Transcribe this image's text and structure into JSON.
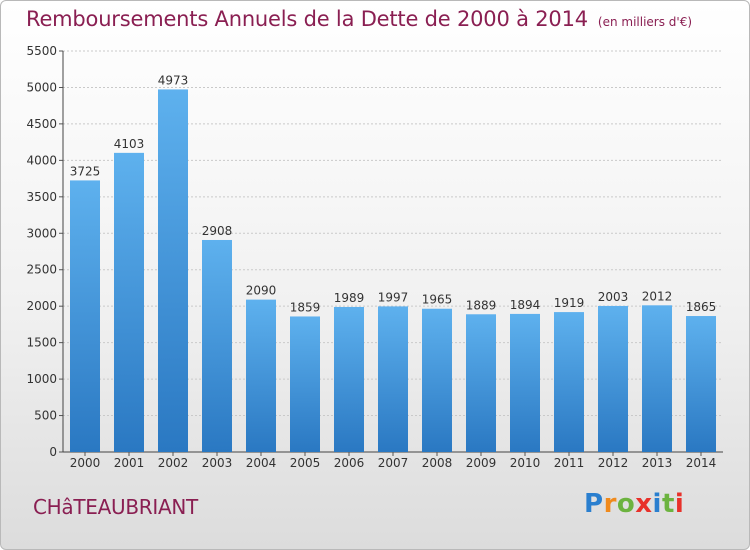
{
  "chart_data": {
    "type": "bar",
    "title": "Remboursements Annuels de la Dette de 2000 à 2014",
    "unit_note": "(en milliers d'€)",
    "categories": [
      "2000",
      "2001",
      "2002",
      "2003",
      "2004",
      "2005",
      "2006",
      "2007",
      "2008",
      "2009",
      "2010",
      "2011",
      "2012",
      "2013",
      "2014"
    ],
    "values": [
      3725,
      4103,
      4973,
      2908,
      2090,
      1859,
      1989,
      1997,
      1965,
      1889,
      1894,
      1919,
      2003,
      2012,
      1865
    ],
    "ylim": [
      0,
      5500
    ],
    "yticks": [
      0,
      500,
      1000,
      1500,
      2000,
      2500,
      3000,
      3500,
      4000,
      4500,
      5000,
      5500
    ],
    "grid": true,
    "bar_color": "#3a8fd6"
  },
  "place": "CHâTEAUBRIANT",
  "logo": {
    "letters": [
      "P",
      "r",
      "o",
      "x",
      "i",
      "t",
      "i"
    ],
    "colors": [
      "#2a7fcf",
      "#f08a1c",
      "#6cb33f",
      "#e8312a",
      "#2a7fcf",
      "#6cb33f",
      "#e8312a"
    ]
  }
}
